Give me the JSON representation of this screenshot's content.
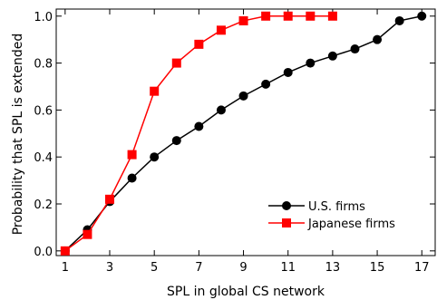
{
  "chart_data": {
    "type": "line",
    "title": "",
    "xlabel": "SPL in global CS network",
    "ylabel": "Probability that SPL is extended",
    "xlim": [
      0.6,
      17.6
    ],
    "ylim": [
      -0.02,
      1.03
    ],
    "xticks": [
      1,
      3,
      5,
      7,
      9,
      11,
      13,
      15,
      17
    ],
    "yticks": [
      0.0,
      0.2,
      0.4,
      0.6,
      0.8,
      1.0
    ],
    "xtick_labels": [
      "1",
      "3",
      "5",
      "7",
      "9",
      "11",
      "13",
      "15",
      "17"
    ],
    "ytick_labels": [
      "0.0",
      "0.2",
      "0.4",
      "0.6",
      "0.8",
      "1.0"
    ],
    "grid": false,
    "legend_position": "bottom-right",
    "series": [
      {
        "name": "U.S. firms",
        "color": "#000000",
        "marker": "circle",
        "x": [
          1,
          2,
          3,
          4,
          5,
          6,
          7,
          8,
          9,
          10,
          11,
          12,
          13,
          14,
          15,
          16,
          17
        ],
        "y": [
          0.0,
          0.09,
          0.21,
          0.31,
          0.4,
          0.47,
          0.53,
          0.6,
          0.66,
          0.71,
          0.76,
          0.8,
          0.83,
          0.86,
          0.9,
          0.98,
          1.0
        ]
      },
      {
        "name": "Japanese firms",
        "color": "#ff0000",
        "marker": "square",
        "x": [
          1,
          2,
          3,
          4,
          5,
          6,
          7,
          8,
          9,
          10,
          11,
          12,
          13
        ],
        "y": [
          0.0,
          0.07,
          0.22,
          0.41,
          0.68,
          0.8,
          0.88,
          0.94,
          0.98,
          1.0,
          1.0,
          1.0,
          1.0
        ]
      }
    ]
  }
}
